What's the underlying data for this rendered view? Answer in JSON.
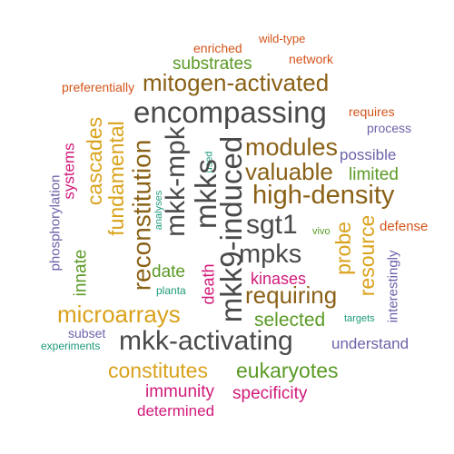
{
  "palette": {
    "charcoal": "#4a4a4a",
    "brown": "#8a6116",
    "green": "#5a9a25",
    "gold": "#d9a21c",
    "purple": "#6b63a8",
    "magenta": "#d11a7a",
    "teal": "#1e9a7a",
    "orange": "#d4541a"
  },
  "words": [
    {
      "text": "encompassing",
      "color": "charcoal"
    },
    {
      "text": "mitogen-activated",
      "color": "brown"
    },
    {
      "text": "substrates",
      "color": "green"
    },
    {
      "text": "enriched",
      "color": "orange"
    },
    {
      "text": "wild-type",
      "color": "orange"
    },
    {
      "text": "network",
      "color": "orange"
    },
    {
      "text": "preferentially",
      "color": "orange"
    },
    {
      "text": "requires",
      "color": "orange"
    },
    {
      "text": "process",
      "color": "purple"
    },
    {
      "text": "possible",
      "color": "purple"
    },
    {
      "text": "modules",
      "color": "brown"
    },
    {
      "text": "valuable",
      "color": "brown"
    },
    {
      "text": "limited",
      "color": "green"
    },
    {
      "text": "high-density",
      "color": "brown"
    },
    {
      "text": "defense",
      "color": "orange"
    },
    {
      "text": "vivo",
      "color": "green"
    },
    {
      "text": "sgt1",
      "color": "charcoal"
    },
    {
      "text": "mpks",
      "color": "charcoal"
    },
    {
      "text": "kinases",
      "color": "magenta"
    },
    {
      "text": "requiring",
      "color": "brown"
    },
    {
      "text": "selected",
      "color": "green"
    },
    {
      "text": "targets",
      "color": "teal"
    },
    {
      "text": "microarrays",
      "color": "gold"
    },
    {
      "text": "subset",
      "color": "purple"
    },
    {
      "text": "experiments",
      "color": "teal"
    },
    {
      "text": "mkk-activating",
      "color": "charcoal"
    },
    {
      "text": "understand",
      "color": "purple"
    },
    {
      "text": "constitutes",
      "color": "gold"
    },
    {
      "text": "eukaryotes",
      "color": "green"
    },
    {
      "text": "immunity",
      "color": "magenta"
    },
    {
      "text": "specificity",
      "color": "magenta"
    },
    {
      "text": "determined",
      "color": "magenta"
    },
    {
      "text": "date",
      "color": "green"
    },
    {
      "text": "planta",
      "color": "teal"
    },
    {
      "text": "phosphorylation",
      "color": "purple"
    },
    {
      "text": "innate",
      "color": "green"
    },
    {
      "text": "systems",
      "color": "magenta"
    },
    {
      "text": "cascades",
      "color": "gold"
    },
    {
      "text": "fundamental",
      "color": "gold"
    },
    {
      "text": "reconstitution",
      "color": "brown"
    },
    {
      "text": "analyses",
      "color": "teal"
    },
    {
      "text": "mkk-mpk",
      "color": "charcoal"
    },
    {
      "text": "used",
      "color": "teal"
    },
    {
      "text": "mkks",
      "color": "charcoal"
    },
    {
      "text": "mkk9-induced",
      "color": "charcoal"
    },
    {
      "text": "death",
      "color": "magenta"
    },
    {
      "text": "probe",
      "color": "gold"
    },
    {
      "text": "resource",
      "color": "gold"
    },
    {
      "text": "interestingly",
      "color": "purple"
    }
  ]
}
